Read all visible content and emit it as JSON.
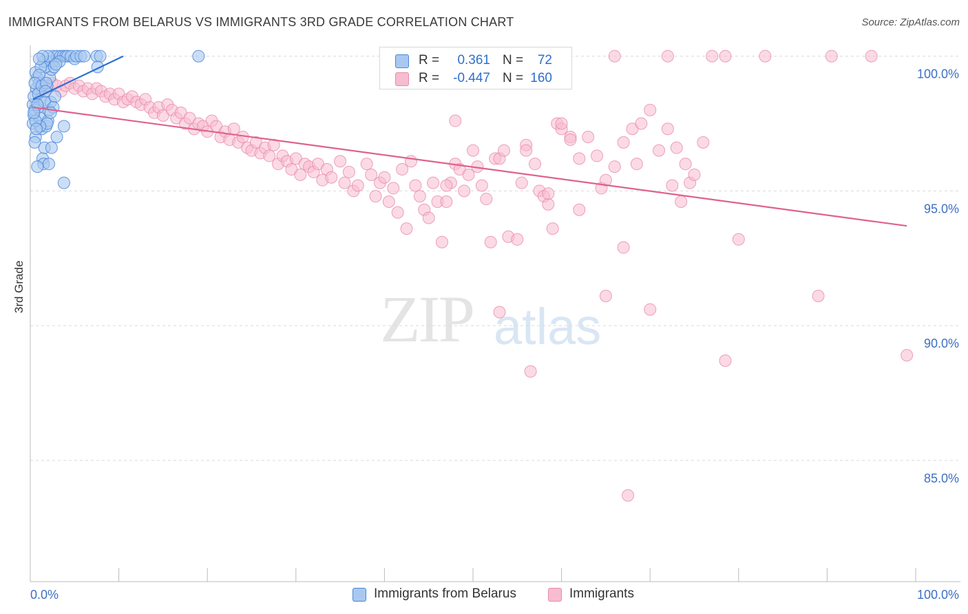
{
  "header": {
    "title": "IMMIGRANTS FROM BELARUS VS IMMIGRANTS 3RD GRADE CORRELATION CHART",
    "source": "Source: ZipAtlas.com"
  },
  "watermark": {
    "zip": "ZIP",
    "atlas": "atlas"
  },
  "legend": {
    "row1": {
      "r_label": "R =",
      "r_value": "0.361",
      "n_label": "N =",
      "n_value": "72"
    },
    "row2": {
      "r_label": "R =",
      "r_value": "-0.447",
      "n_label": "N =",
      "n_value": "160"
    }
  },
  "bottom_legend": {
    "item1": "Immigrants from Belarus",
    "item2": "Immigrants"
  },
  "colors": {
    "blue_fill": "#a9c8f0",
    "blue_stroke": "#4a86d8",
    "blue_line": "#2a6fd1",
    "pink_fill": "#f7bcd0",
    "pink_stroke": "#e88aaa",
    "pink_line": "#e0608f",
    "tick_label": "#3d70c4",
    "grid": "#d9d9d9"
  },
  "chart_data": {
    "type": "scatter",
    "title": "IMMIGRANTS FROM BELARUS VS IMMIGRANTS 3RD GRADE CORRELATION CHART",
    "xlabel": "",
    "ylabel": "3rd Grade",
    "xlim": [
      0,
      100
    ],
    "ylim": [
      80.5,
      100.5
    ],
    "x_tick_labels": [
      "0.0%",
      "100.0%"
    ],
    "y_ticks": [
      85,
      90,
      95,
      100
    ],
    "y_tick_labels": [
      "85.0%",
      "90.0%",
      "95.0%",
      "100.0%"
    ],
    "grid": "horizontal dashed",
    "legend_position": "top-center",
    "series": [
      {
        "name": "Immigrants from Belarus",
        "R": 0.361,
        "N": 72,
        "trend": {
          "x": [
            0.3,
            10.5
          ],
          "y": [
            98.4,
            100.0
          ]
        },
        "points": [
          [
            0.3,
            98.2
          ],
          [
            0.4,
            97.8
          ],
          [
            0.5,
            98.0
          ],
          [
            0.3,
            97.5
          ],
          [
            0.6,
            97.0
          ],
          [
            0.5,
            96.8
          ],
          [
            0.4,
            98.5
          ],
          [
            0.7,
            98.8
          ],
          [
            0.8,
            99.2
          ],
          [
            0.6,
            99.4
          ],
          [
            1.0,
            99.0
          ],
          [
            1.2,
            98.4
          ],
          [
            0.9,
            98.1
          ],
          [
            1.1,
            97.7
          ],
          [
            1.3,
            97.3
          ],
          [
            1.4,
            96.2
          ],
          [
            1.5,
            96.0
          ],
          [
            0.8,
            95.9
          ],
          [
            1.6,
            96.6
          ],
          [
            1.8,
            97.4
          ],
          [
            2.0,
            97.6
          ],
          [
            2.1,
            98.0
          ],
          [
            2.3,
            98.3
          ],
          [
            1.9,
            98.9
          ],
          [
            2.2,
            99.2
          ],
          [
            2.4,
            99.5
          ],
          [
            1.7,
            99.6
          ],
          [
            2.5,
            99.8
          ],
          [
            1.5,
            99.8
          ],
          [
            1.2,
            99.6
          ],
          [
            2.6,
            100.0
          ],
          [
            3.0,
            100.0
          ],
          [
            3.4,
            100.0
          ],
          [
            3.7,
            100.0
          ],
          [
            4.0,
            100.0
          ],
          [
            4.2,
            100.0
          ],
          [
            4.6,
            100.0
          ],
          [
            5.0,
            99.9
          ],
          [
            5.2,
            100.0
          ],
          [
            5.7,
            100.0
          ],
          [
            6.1,
            100.0
          ],
          [
            7.5,
            100.0
          ],
          [
            7.9,
            100.0
          ],
          [
            7.6,
            99.6
          ],
          [
            2.0,
            100.0
          ],
          [
            1.4,
            100.0
          ],
          [
            3.3,
            99.8
          ],
          [
            2.7,
            99.6
          ],
          [
            1.0,
            99.3
          ],
          [
            0.5,
            99.0
          ],
          [
            0.9,
            98.6
          ],
          [
            1.6,
            98.3
          ],
          [
            2.8,
            98.5
          ],
          [
            2.6,
            98.1
          ],
          [
            2.3,
            97.9
          ],
          [
            1.9,
            97.5
          ],
          [
            1.1,
            97.4
          ],
          [
            3.0,
            97.0
          ],
          [
            2.4,
            96.6
          ],
          [
            3.8,
            97.4
          ],
          [
            1.3,
            98.9
          ],
          [
            1.8,
            99.0
          ],
          [
            0.8,
            98.2
          ],
          [
            0.6,
            97.6
          ],
          [
            2.1,
            96.0
          ],
          [
            3.8,
            95.3
          ],
          [
            1.0,
            99.9
          ],
          [
            19.0,
            100.0
          ],
          [
            0.4,
            97.9
          ],
          [
            2.9,
            99.7
          ],
          [
            1.7,
            98.7
          ],
          [
            0.7,
            97.3
          ]
        ]
      },
      {
        "name": "Immigrants",
        "R": -0.447,
        "N": 160,
        "trend": {
          "x": [
            0.3,
            99.0
          ],
          "y": [
            98.1,
            93.7
          ]
        },
        "points": [
          [
            1.0,
            98.7
          ],
          [
            1.5,
            98.9
          ],
          [
            2.0,
            98.8
          ],
          [
            2.5,
            99.0
          ],
          [
            3.0,
            98.9
          ],
          [
            3.5,
            98.7
          ],
          [
            4.0,
            98.9
          ],
          [
            4.5,
            99.0
          ],
          [
            5.0,
            98.8
          ],
          [
            5.5,
            98.9
          ],
          [
            6.0,
            98.7
          ],
          [
            6.5,
            98.8
          ],
          [
            7.0,
            98.6
          ],
          [
            7.5,
            98.8
          ],
          [
            8.0,
            98.7
          ],
          [
            8.5,
            98.5
          ],
          [
            9.0,
            98.6
          ],
          [
            9.5,
            98.4
          ],
          [
            10.0,
            98.6
          ],
          [
            10.5,
            98.3
          ],
          [
            11.0,
            98.4
          ],
          [
            11.5,
            98.5
          ],
          [
            12.0,
            98.3
          ],
          [
            12.5,
            98.2
          ],
          [
            13.0,
            98.4
          ],
          [
            13.5,
            98.1
          ],
          [
            14.0,
            97.9
          ],
          [
            14.5,
            98.1
          ],
          [
            15.0,
            97.8
          ],
          [
            15.5,
            98.2
          ],
          [
            16.0,
            98.0
          ],
          [
            16.5,
            97.7
          ],
          [
            17.0,
            97.9
          ],
          [
            17.5,
            97.5
          ],
          [
            18.0,
            97.7
          ],
          [
            18.5,
            97.3
          ],
          [
            19.0,
            97.5
          ],
          [
            19.5,
            97.4
          ],
          [
            20.0,
            97.2
          ],
          [
            20.5,
            97.6
          ],
          [
            21.0,
            97.4
          ],
          [
            21.5,
            97.0
          ],
          [
            22.0,
            97.2
          ],
          [
            22.5,
            96.9
          ],
          [
            23.0,
            97.3
          ],
          [
            23.5,
            96.8
          ],
          [
            24.0,
            97.0
          ],
          [
            24.5,
            96.6
          ],
          [
            25.0,
            96.5
          ],
          [
            25.5,
            96.8
          ],
          [
            26.0,
            96.4
          ],
          [
            26.5,
            96.6
          ],
          [
            27.0,
            96.3
          ],
          [
            27.5,
            96.7
          ],
          [
            28.0,
            96.0
          ],
          [
            28.5,
            96.3
          ],
          [
            29.0,
            96.1
          ],
          [
            29.5,
            95.8
          ],
          [
            30.0,
            96.2
          ],
          [
            30.5,
            95.6
          ],
          [
            31.0,
            96.0
          ],
          [
            31.5,
            95.9
          ],
          [
            32.0,
            95.7
          ],
          [
            32.5,
            96.0
          ],
          [
            33.0,
            95.4
          ],
          [
            33.5,
            95.8
          ],
          [
            34.0,
            95.5
          ],
          [
            35.0,
            96.1
          ],
          [
            35.5,
            95.3
          ],
          [
            36.0,
            95.7
          ],
          [
            36.5,
            95.0
          ],
          [
            37.0,
            95.2
          ],
          [
            38.0,
            96.0
          ],
          [
            38.5,
            95.6
          ],
          [
            39.0,
            94.8
          ],
          [
            39.5,
            95.3
          ],
          [
            40.0,
            95.5
          ],
          [
            40.5,
            94.6
          ],
          [
            41.0,
            95.1
          ],
          [
            41.5,
            94.2
          ],
          [
            42.0,
            95.8
          ],
          [
            42.5,
            93.6
          ],
          [
            43.0,
            96.1
          ],
          [
            43.5,
            95.2
          ],
          [
            44.0,
            94.8
          ],
          [
            44.5,
            94.3
          ],
          [
            45.0,
            94.0
          ],
          [
            45.5,
            95.3
          ],
          [
            46.0,
            94.6
          ],
          [
            46.5,
            93.1
          ],
          [
            47.0,
            94.6
          ],
          [
            47.5,
            95.3
          ],
          [
            48.0,
            96.0
          ],
          [
            48.5,
            95.8
          ],
          [
            49.0,
            95.0
          ],
          [
            49.5,
            95.6
          ],
          [
            50.0,
            96.5
          ],
          [
            50.5,
            95.9
          ],
          [
            51.0,
            95.2
          ],
          [
            51.5,
            94.7
          ],
          [
            52.0,
            93.1
          ],
          [
            52.5,
            96.2
          ],
          [
            53.0,
            96.2
          ],
          [
            53.5,
            96.5
          ],
          [
            54.0,
            93.3
          ],
          [
            55.0,
            93.2
          ],
          [
            55.5,
            95.3
          ],
          [
            56.0,
            96.7
          ],
          [
            57.0,
            96.0
          ],
          [
            57.5,
            95.0
          ],
          [
            58.0,
            94.8
          ],
          [
            58.5,
            94.5
          ],
          [
            59.0,
            93.6
          ],
          [
            59.5,
            97.5
          ],
          [
            60.0,
            97.3
          ],
          [
            61.0,
            97.0
          ],
          [
            62.0,
            96.2
          ],
          [
            63.0,
            97.0
          ],
          [
            64.0,
            96.3
          ],
          [
            64.5,
            95.1
          ],
          [
            65.0,
            95.4
          ],
          [
            66.0,
            95.9
          ],
          [
            67.0,
            96.8
          ],
          [
            68.0,
            97.3
          ],
          [
            68.5,
            96.0
          ],
          [
            69.0,
            97.5
          ],
          [
            70.0,
            98.0
          ],
          [
            71.0,
            96.5
          ],
          [
            72.0,
            97.3
          ],
          [
            72.5,
            95.2
          ],
          [
            73.0,
            96.6
          ],
          [
            73.5,
            94.6
          ],
          [
            74.0,
            96.0
          ],
          [
            74.5,
            95.3
          ],
          [
            75.0,
            95.6
          ],
          [
            76.0,
            96.8
          ],
          [
            48.0,
            97.6
          ],
          [
            53.0,
            90.5
          ],
          [
            56.5,
            88.3
          ],
          [
            65.0,
            91.1
          ],
          [
            70.0,
            90.6
          ],
          [
            67.0,
            92.9
          ],
          [
            80.0,
            93.2
          ],
          [
            78.5,
            88.7
          ],
          [
            89.0,
            91.1
          ],
          [
            99.0,
            88.9
          ],
          [
            67.5,
            83.7
          ],
          [
            66.0,
            100.0
          ],
          [
            72.0,
            100.0
          ],
          [
            77.0,
            100.0
          ],
          [
            78.5,
            100.0
          ],
          [
            83.0,
            100.0
          ],
          [
            90.5,
            100.0
          ],
          [
            95.0,
            100.0
          ],
          [
            60.0,
            97.5
          ],
          [
            61.0,
            96.9
          ],
          [
            56.0,
            96.5
          ],
          [
            62.0,
            94.3
          ],
          [
            58.5,
            94.9
          ],
          [
            47.0,
            95.2
          ]
        ]
      }
    ]
  }
}
